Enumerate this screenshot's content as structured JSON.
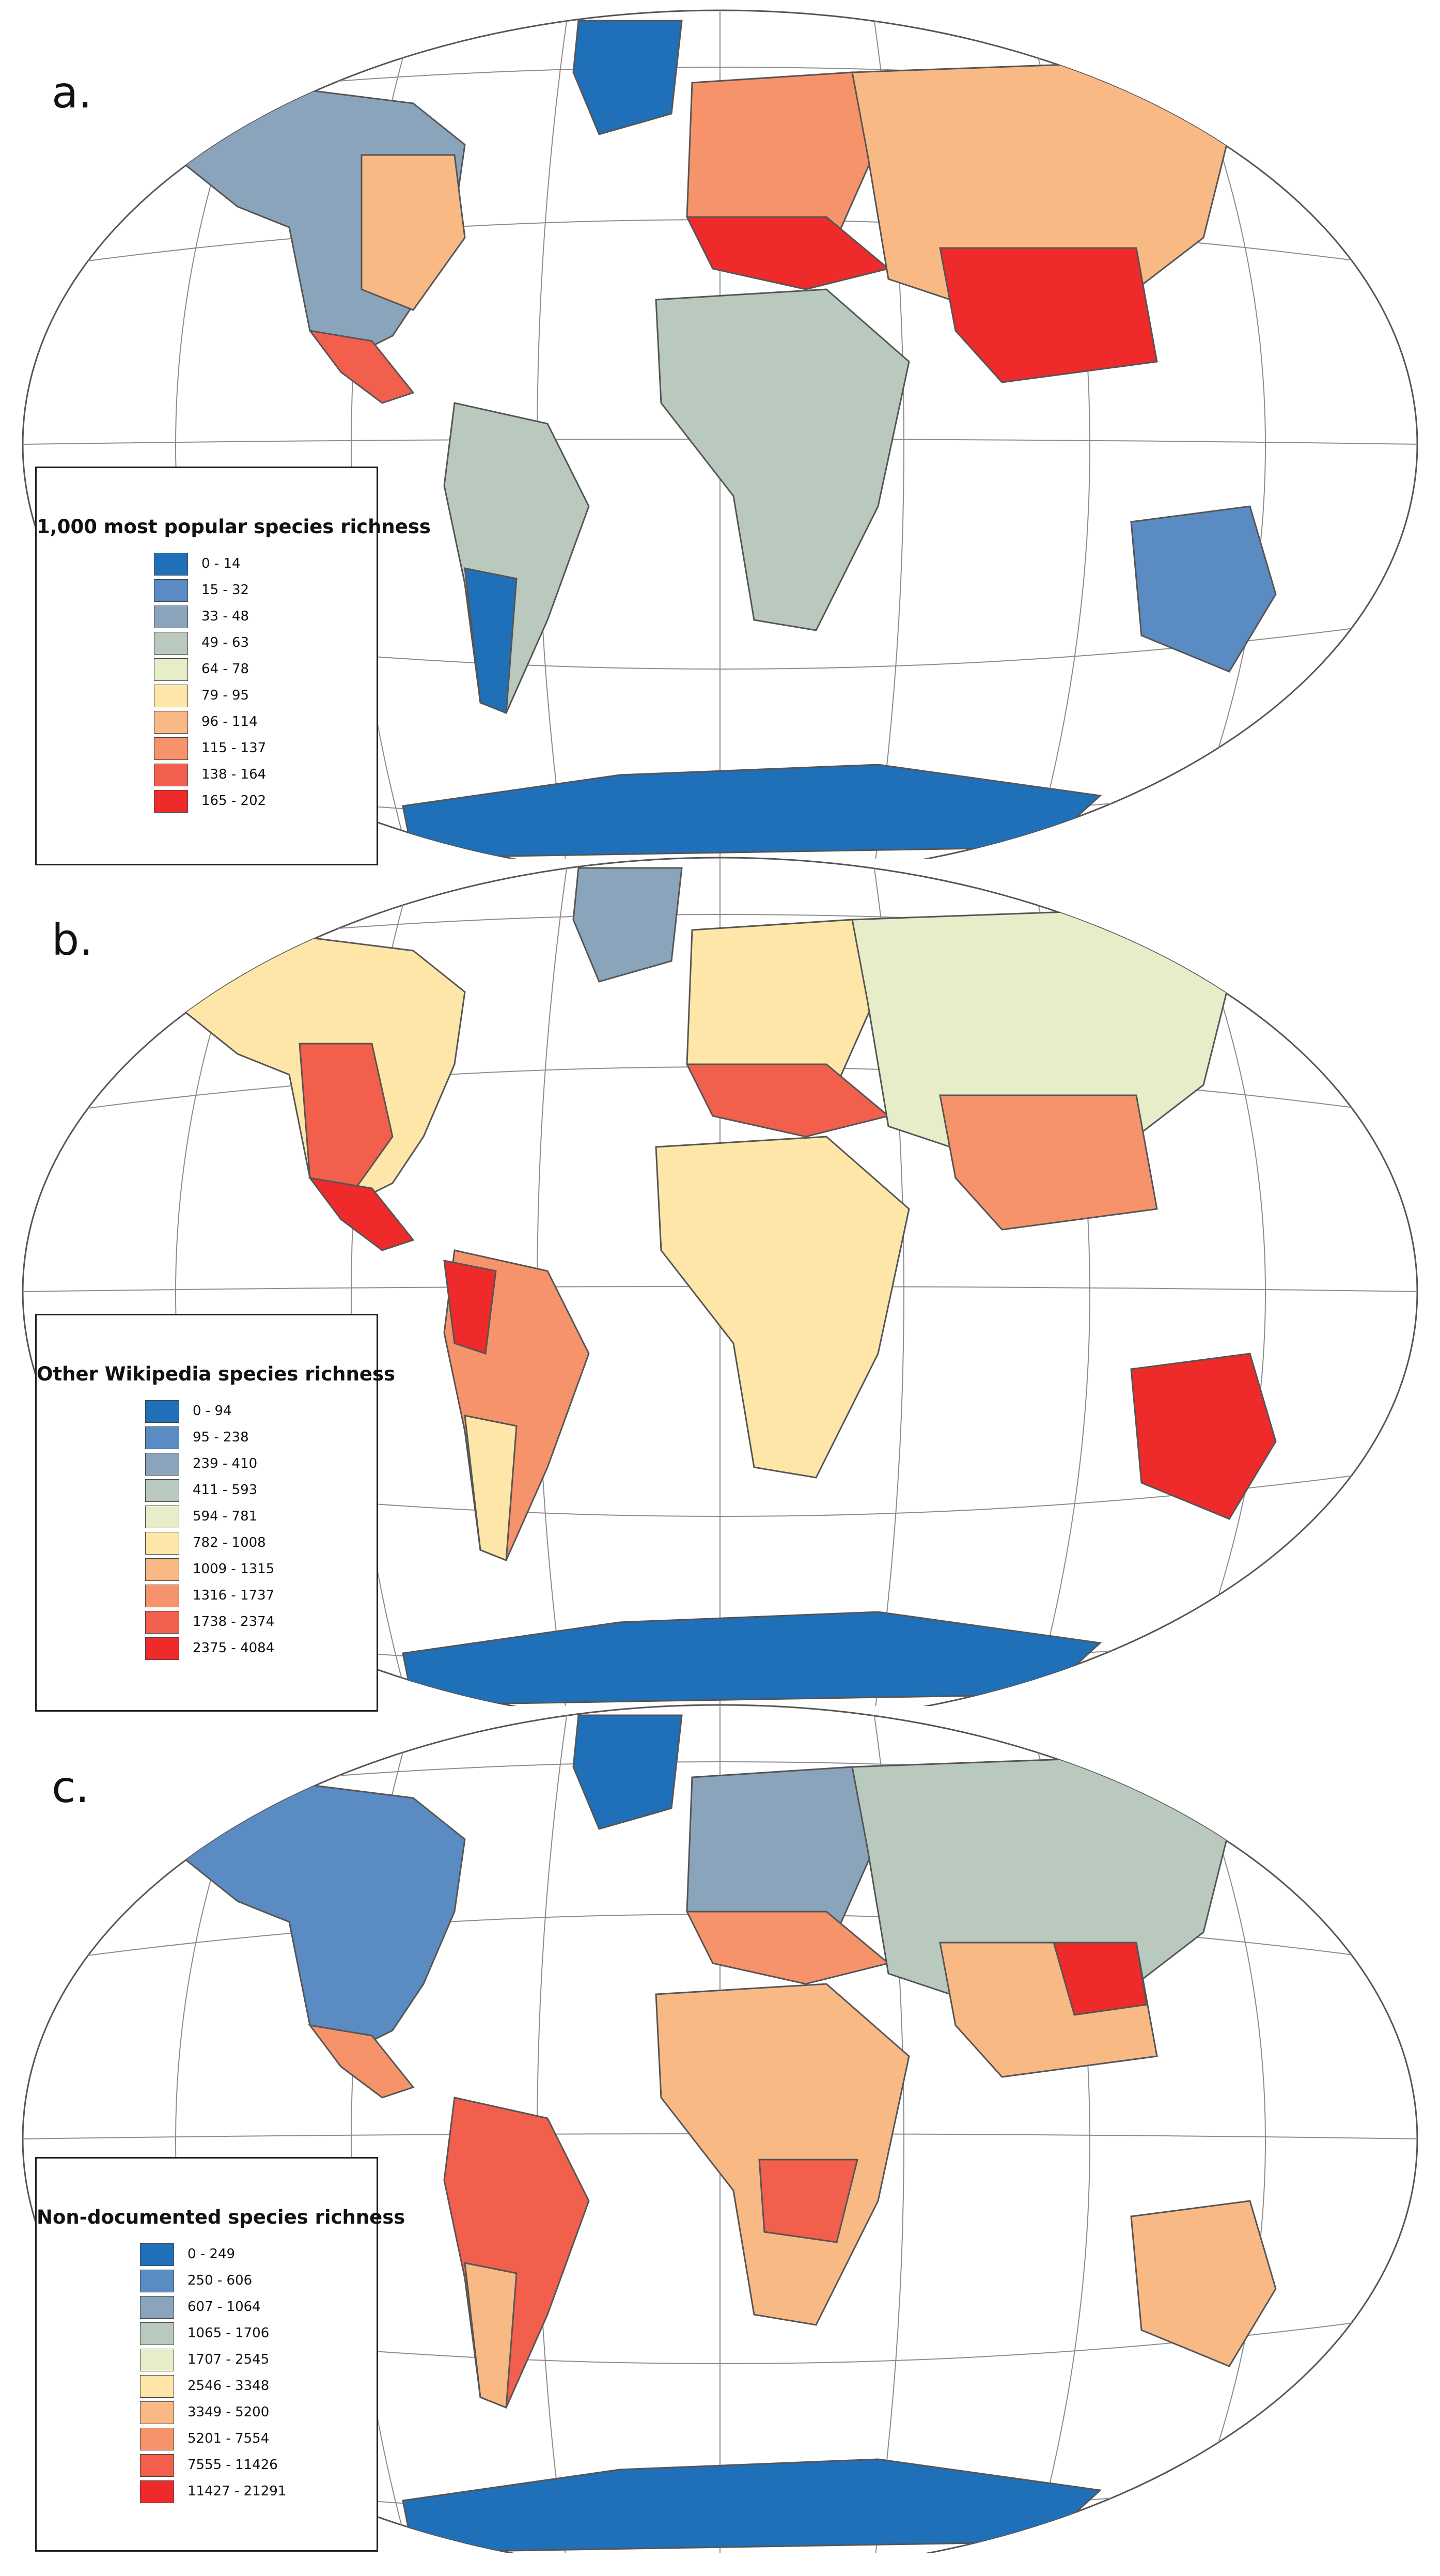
{
  "panels": [
    {
      "label": "a.",
      "legend_title": "1,000 most popular species richness",
      "classes": [
        {
          "range": "0 - 14",
          "color": "#1f70b8"
        },
        {
          "range": "15 - 32",
          "color": "#5a8bc2"
        },
        {
          "range": "33 - 48",
          "color": "#8aa4bc"
        },
        {
          "range": "49 - 63",
          "color": "#b9c9bd"
        },
        {
          "range": "64 - 78",
          "color": "#e6edc8"
        },
        {
          "range": "79 - 95",
          "color": "#fde6a8"
        },
        {
          "range": "96 - 114",
          "color": "#f9b985"
        },
        {
          "range": "115 - 137",
          "color": "#f6936a"
        },
        {
          "range": "138 - 164",
          "color": "#f25f4c"
        },
        {
          "range": "165 - 202",
          "color": "#ee2a2a"
        }
      ]
    },
    {
      "label": "b.",
      "legend_title": "Other Wikipedia species richness",
      "classes": [
        {
          "range": "0 - 94",
          "color": "#1f70b8"
        },
        {
          "range": "95 - 238",
          "color": "#5a8bc2"
        },
        {
          "range": "239 - 410",
          "color": "#8aa4bc"
        },
        {
          "range": "411 - 593",
          "color": "#b9c9bd"
        },
        {
          "range": "594 - 781",
          "color": "#e6edc8"
        },
        {
          "range": "782 - 1008",
          "color": "#fde6a8"
        },
        {
          "range": "1009 - 1315",
          "color": "#f9b985"
        },
        {
          "range": "1316 - 1737",
          "color": "#f6936a"
        },
        {
          "range": "1738 - 2374",
          "color": "#f25f4c"
        },
        {
          "range": "2375 - 4084",
          "color": "#ee2a2a"
        }
      ]
    },
    {
      "label": "c.",
      "legend_title": "Non-documented species richness",
      "classes": [
        {
          "range": "0 - 249",
          "color": "#1f70b8"
        },
        {
          "range": "250 - 606",
          "color": "#5a8bc2"
        },
        {
          "range": "607 - 1064",
          "color": "#8aa4bc"
        },
        {
          "range": "1065 - 1706",
          "color": "#b9c9bd"
        },
        {
          "range": "1707 - 2545",
          "color": "#e6edc8"
        },
        {
          "range": "2546 - 3348",
          "color": "#fde6a8"
        },
        {
          "range": "3349 - 5200",
          "color": "#f9b985"
        },
        {
          "range": "5201 - 7554",
          "color": "#f6936a"
        },
        {
          "range": "7555 - 11426",
          "color": "#f25f4c"
        },
        {
          "range": "11427 - 21291",
          "color": "#ee2a2a"
        }
      ]
    }
  ]
}
